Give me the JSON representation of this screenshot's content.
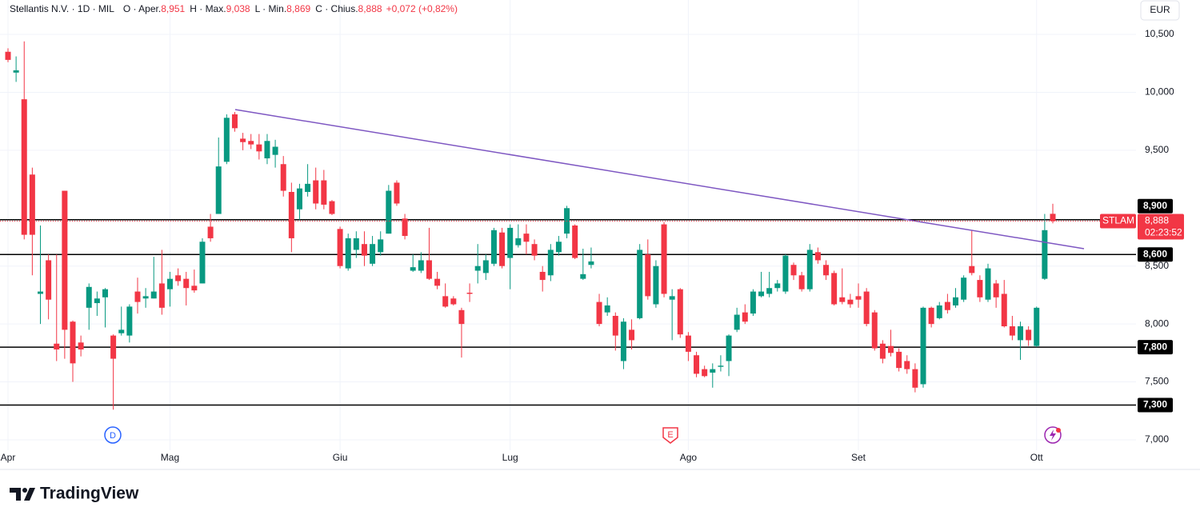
{
  "header": {
    "symbol": "Stellantis N.V. · 1D · MIL",
    "fields": [
      {
        "label": "O · Aper.",
        "value": "8,951"
      },
      {
        "label": "H · Max.",
        "value": "9,038"
      },
      {
        "label": "L · Min.",
        "value": "8,869"
      },
      {
        "label": "C · Chius.",
        "value": "8,888"
      }
    ],
    "change": "+0,072 (+0,82%)"
  },
  "currency": "EUR",
  "events": [
    {
      "label": "D"
    },
    {
      "label": "E"
    }
  ],
  "brand": "TradingView",
  "chart_data": {
    "type": "candlestick",
    "up_color": "#089981",
    "down_color": "#f23645",
    "categories": [
      "Apr",
      null,
      null,
      null,
      null,
      null,
      null,
      null,
      null,
      null,
      null,
      null,
      null,
      null,
      null,
      null,
      null,
      null,
      null,
      null,
      "Mag",
      null,
      null,
      null,
      null,
      null,
      null,
      null,
      null,
      null,
      null,
      null,
      null,
      null,
      null,
      null,
      null,
      null,
      null,
      null,
      null,
      "Giu",
      null,
      null,
      null,
      null,
      null,
      null,
      null,
      null,
      null,
      null,
      null,
      null,
      null,
      null,
      null,
      null,
      null,
      null,
      null,
      null,
      "Lug",
      null,
      null,
      null,
      null,
      null,
      null,
      null,
      null,
      null,
      null,
      null,
      null,
      null,
      null,
      null,
      null,
      null,
      null,
      null,
      null,
      null,
      "Ago",
      null,
      null,
      null,
      null,
      null,
      null,
      null,
      null,
      null,
      null,
      null,
      null,
      null,
      null,
      null,
      null,
      null,
      null,
      null,
      null,
      "Set",
      null,
      null,
      null,
      null,
      null,
      null,
      null,
      null,
      null,
      null,
      null,
      null,
      null,
      null,
      null,
      null,
      null,
      null,
      null,
      null,
      null,
      "Ott",
      null,
      null
    ],
    "open": [
      10.35,
      10.17,
      9.94,
      9.29,
      8.26,
      8.55,
      7.83,
      9.15,
      8.02,
      7.84,
      8.14,
      8.18,
      8.23,
      7.9,
      7.92,
      7.9,
      8.28,
      8.22,
      8.22,
      8.35,
      8.3,
      8.42,
      8.39,
      8.33,
      8.35,
      8.84,
      8.95,
      9.4,
      9.81,
      9.6,
      9.58,
      9.55,
      9.43,
      9.46,
      9.38,
      9.14,
      8.99,
      9.14,
      9.24,
      9.24,
      9.06,
      8.82,
      8.48,
      8.64,
      8.69,
      8.52,
      8.62,
      8.78,
      9.22,
      8.91,
      8.46,
      8.46,
      8.55,
      8.39,
      8.24,
      8.22,
      8.12,
      8.27,
      8.46,
      8.44,
      8.52,
      8.79,
      8.57,
      8.68,
      8.78,
      8.69,
      8.45,
      8.42,
      8.62,
      8.78,
      8.85,
      8.39,
      8.51,
      8.19,
      8.1,
      8.07,
      7.68,
      7.95,
      8.05,
      8.6,
      8.17,
      8.86,
      8.21,
      8.3,
      7.9,
      7.73,
      7.61,
      7.58,
      7.63,
      7.68,
      7.95,
      8.1,
      8.09,
      8.24,
      8.26,
      8.31,
      8.28,
      8.51,
      8.42,
      8.3,
      8.62,
      8.51,
      8.44,
      8.23,
      8.21,
      8.24,
      8.28,
      8.1,
      7.83,
      7.81,
      7.76,
      7.68,
      7.61,
      7.48,
      8.14,
      8.05,
      8.19,
      8.16,
      8.21,
      8.5,
      8.38,
      8.21,
      8.35,
      8.26,
      7.98,
      7.86,
      7.95,
      7.81,
      8.39,
      8.951
    ],
    "high": [
      10.38,
      10.31,
      10.44,
      9.35,
      8.85,
      8.6,
      8.6,
      9.15,
      8.03,
      7.9,
      8.35,
      8.28,
      8.31,
      7.91,
      8.15,
      8.17,
      8.4,
      8.31,
      8.58,
      8.64,
      8.45,
      8.48,
      8.45,
      8.47,
      8.74,
      8.95,
      9.61,
      9.81,
      9.83,
      9.65,
      9.64,
      9.64,
      9.64,
      9.59,
      9.45,
      9.22,
      9.21,
      9.38,
      9.35,
      9.33,
      9.07,
      8.84,
      8.78,
      8.8,
      8.8,
      8.76,
      8.8,
      9.2,
      9.24,
      8.95,
      8.6,
      8.62,
      8.83,
      8.45,
      8.35,
      8.24,
      8.14,
      8.35,
      8.69,
      8.6,
      8.83,
      8.83,
      8.86,
      8.86,
      8.86,
      8.73,
      8.5,
      8.69,
      8.76,
      9.02,
      8.86,
      8.65,
      8.66,
      8.26,
      8.23,
      8.1,
      8.05,
      8.04,
      8.69,
      8.73,
      8.55,
      8.88,
      8.3,
      8.31,
      7.93,
      7.76,
      7.64,
      7.66,
      7.73,
      7.91,
      8.14,
      8.17,
      8.3,
      8.45,
      8.45,
      8.38,
      8.6,
      8.53,
      8.45,
      8.69,
      8.66,
      8.55,
      8.46,
      8.48,
      8.26,
      8.35,
      8.31,
      8.12,
      7.86,
      7.95,
      7.79,
      7.73,
      7.66,
      8.15,
      8.15,
      8.19,
      8.26,
      8.31,
      8.42,
      8.81,
      8.42,
      8.52,
      8.38,
      8.38,
      8.07,
      8.02,
      7.98,
      8.15,
      8.95,
      9.038
    ],
    "low": [
      10.26,
      10.09,
      8.73,
      8.42,
      8.0,
      8.04,
      7.68,
      7.7,
      7.5,
      7.72,
      7.95,
      8.07,
      7.97,
      7.26,
      7.9,
      7.84,
      8.09,
      8.14,
      8.22,
      8.08,
      8.15,
      8.33,
      8.16,
      8.27,
      8.35,
      8.71,
      8.95,
      9.38,
      9.66,
      9.5,
      9.51,
      9.42,
      9.38,
      9.35,
      9.1,
      8.62,
      8.9,
      9.1,
      8.99,
      8.99,
      8.94,
      8.48,
      8.46,
      8.57,
      8.5,
      8.5,
      8.59,
      8.78,
      9.02,
      8.73,
      8.45,
      8.44,
      8.38,
      8.3,
      8.14,
      8.16,
      7.71,
      8.19,
      8.35,
      8.38,
      8.5,
      8.48,
      8.3,
      8.66,
      8.6,
      8.55,
      8.28,
      8.37,
      8.59,
      8.74,
      8.56,
      8.38,
      8.48,
      7.98,
      8.07,
      7.77,
      7.61,
      7.78,
      8.04,
      8.21,
      8.14,
      8.23,
      7.86,
      7.88,
      7.68,
      7.54,
      7.54,
      7.45,
      7.59,
      7.55,
      7.93,
      8.0,
      8.07,
      8.23,
      8.23,
      8.28,
      8.26,
      8.38,
      8.28,
      8.28,
      8.52,
      8.38,
      8.16,
      8.17,
      8.14,
      8.14,
      7.98,
      7.77,
      7.66,
      7.72,
      7.59,
      7.57,
      7.41,
      7.45,
      7.97,
      8.04,
      8.09,
      8.14,
      8.19,
      8.42,
      8.19,
      8.19,
      8.14,
      7.97,
      7.86,
      7.69,
      7.81,
      7.8,
      8.38,
      8.869
    ],
    "close": [
      10.28,
      10.19,
      8.77,
      8.77,
      8.28,
      8.21,
      7.78,
      7.95,
      7.66,
      7.78,
      8.32,
      8.22,
      8.3,
      7.7,
      7.95,
      8.15,
      8.19,
      8.24,
      8.28,
      8.14,
      8.39,
      8.37,
      8.31,
      8.29,
      8.71,
      8.74,
      9.36,
      9.78,
      9.69,
      9.57,
      9.55,
      9.49,
      9.58,
      9.53,
      9.15,
      8.74,
      9.17,
      9.21,
      9.04,
      9.03,
      8.95,
      8.5,
      8.74,
      8.74,
      8.59,
      8.69,
      8.73,
      9.15,
      9.04,
      8.76,
      8.49,
      8.55,
      8.39,
      8.33,
      8.15,
      8.17,
      8.0,
      8.26,
      8.5,
      8.55,
      8.81,
      8.5,
      8.83,
      8.74,
      8.71,
      8.59,
      8.38,
      8.64,
      8.71,
      9.0,
      8.57,
      8.43,
      8.54,
      8.0,
      8.16,
      7.9,
      8.02,
      7.86,
      8.64,
      8.24,
      8.5,
      8.26,
      8.24,
      7.91,
      7.76,
      7.57,
      7.55,
      7.61,
      7.64,
      7.9,
      8.08,
      8.02,
      8.28,
      8.28,
      8.31,
      8.35,
      8.59,
      8.42,
      8.3,
      8.64,
      8.55,
      8.42,
      8.17,
      8.19,
      8.17,
      8.21,
      8.0,
      7.79,
      7.7,
      7.75,
      7.62,
      7.61,
      7.45,
      8.14,
      8.0,
      8.16,
      8.12,
      8.23,
      8.4,
      8.44,
      8.23,
      8.48,
      8.23,
      7.98,
      7.9,
      7.98,
      7.86,
      8.14,
      8.81,
      8.888
    ],
    "ylim": [
      6.91,
      10.797
    ],
    "yticks": [
      {
        "value": 10.5,
        "label": "10,500"
      },
      {
        "value": 10,
        "label": "10,000"
      },
      {
        "value": 9.5,
        "label": "9,500"
      },
      {
        "value": 8.5,
        "label": "8,500"
      },
      {
        "value": 8,
        "label": "8,000"
      },
      {
        "value": 7.5,
        "label": "7,500"
      },
      {
        "value": 7,
        "label": "7,000"
      }
    ],
    "grid": true,
    "levels": [
      {
        "value": 8.9,
        "label": "8,900"
      },
      {
        "value": 8.6,
        "label": "8,600"
      },
      {
        "value": 7.8,
        "label": "7,800"
      },
      {
        "value": 7.3,
        "label": "7,300"
      }
    ],
    "level_color": "#000000",
    "trendline": {
      "x": [
        28.05,
        132.85
      ],
      "y": [
        9.851,
        8.65
      ],
      "color": "#7e57c2"
    },
    "price_label": {
      "symbol": "STLAM",
      "price": {
        "value": 8.888,
        "label": "8,888"
      },
      "countdown": "02:23:52",
      "color": "#f23645"
    }
  }
}
